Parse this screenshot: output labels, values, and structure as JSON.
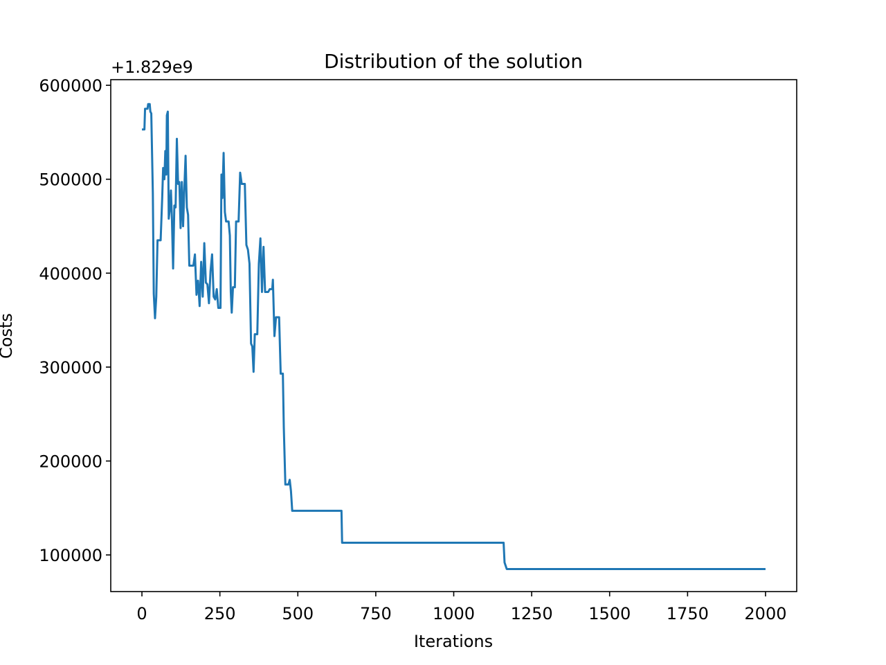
{
  "chart_data": {
    "type": "line",
    "title": "Distribution of the solution",
    "x_label": "Iterations",
    "y_label": "Costs",
    "y_offset_label": "+1.829e9",
    "xlim": [
      -100,
      2100
    ],
    "ylim": [
      61000,
      606000
    ],
    "xticks": [
      0,
      250,
      500,
      750,
      1000,
      1250,
      1500,
      1750,
      2000
    ],
    "yticks": [
      100000,
      200000,
      300000,
      400000,
      500000,
      600000
    ],
    "grid": false,
    "x": [
      0,
      8,
      10,
      18,
      20,
      25,
      27,
      30,
      35,
      38,
      42,
      46,
      50,
      60,
      65,
      68,
      72,
      75,
      78,
      80,
      83,
      86,
      90,
      93,
      96,
      100,
      104,
      108,
      112,
      116,
      120,
      124,
      128,
      132,
      136,
      140,
      144,
      148,
      152,
      165,
      170,
      175,
      180,
      185,
      190,
      195,
      200,
      205,
      210,
      215,
      220,
      225,
      230,
      235,
      240,
      245,
      252,
      255,
      258,
      262,
      266,
      270,
      278,
      282,
      285,
      288,
      292,
      298,
      302,
      310,
      315,
      320,
      330,
      335,
      340,
      345,
      350,
      354,
      358,
      362,
      370,
      375,
      380,
      385,
      390,
      395,
      405,
      410,
      418,
      420,
      425,
      430,
      440,
      445,
      452,
      455,
      460,
      470,
      474,
      478,
      482,
      640,
      642,
      1160,
      1163,
      1170,
      2000
    ],
    "series": [
      {
        "name": "Costs",
        "color": "#1f77b4",
        "values": [
          553000,
          553000,
          575000,
          575000,
          580000,
          580000,
          572000,
          570000,
          485000,
          378000,
          352000,
          375000,
          435000,
          435000,
          480000,
          512000,
          500000,
          530000,
          505000,
          568000,
          572000,
          458000,
          470000,
          488000,
          460000,
          405000,
          472000,
          470000,
          543000,
          495000,
          497000,
          448000,
          497000,
          450000,
          490000,
          525000,
          470000,
          462000,
          408000,
          408000,
          420000,
          377000,
          392000,
          365000,
          412000,
          375000,
          432000,
          390000,
          388000,
          368000,
          402000,
          420000,
          375000,
          372000,
          383000,
          363000,
          363000,
          505000,
          480000,
          528000,
          465000,
          455000,
          455000,
          440000,
          380000,
          358000,
          385000,
          385000,
          455000,
          455000,
          507000,
          495000,
          495000,
          430000,
          425000,
          410000,
          325000,
          322000,
          295000,
          335000,
          335000,
          410000,
          437000,
          380000,
          428000,
          380000,
          380000,
          383000,
          383000,
          393000,
          333000,
          353000,
          353000,
          293000,
          293000,
          236000,
          175000,
          175000,
          180000,
          168000,
          147000,
          147000,
          113000,
          113000,
          92000,
          85000,
          85000
        ]
      }
    ]
  }
}
